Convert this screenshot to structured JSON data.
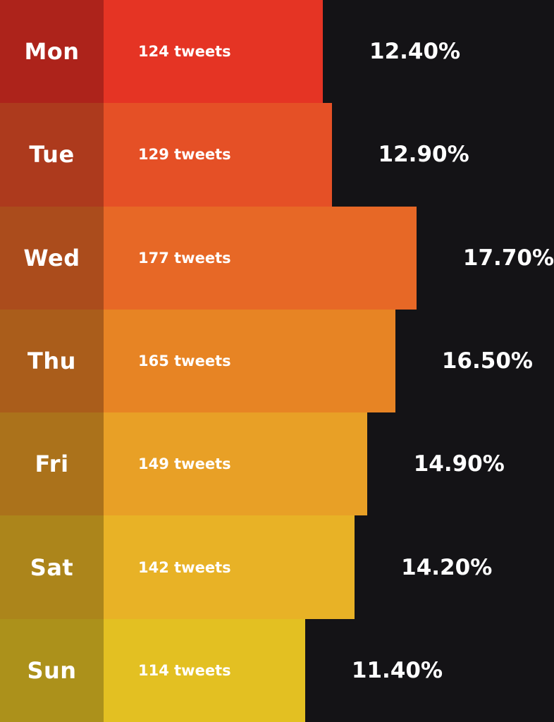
{
  "colors": {
    "background": "#141316"
  },
  "chart_data": {
    "type": "bar",
    "orientation": "horizontal",
    "categories": [
      "Mon",
      "Tue",
      "Wed",
      "Thu",
      "Fri",
      "Sat",
      "Sun"
    ],
    "series": [
      {
        "values": [
          124,
          129,
          177,
          165,
          149,
          142,
          114
        ],
        "unit": "tweets"
      }
    ],
    "value_labels": [
      "124 tweets",
      "129 tweets",
      "177 tweets",
      "165 tweets",
      "149 tweets",
      "142 tweets",
      "114 tweets"
    ],
    "percent_labels": [
      "12.40%",
      "12.90%",
      "17.70%",
      "16.50%",
      "14.90%",
      "14.20%",
      "11.40%"
    ],
    "day_colors": [
      "#ad231b",
      "#ad3a1d",
      "#ab4c1c",
      "#aa5d1b",
      "#ab721b",
      "#ac851b",
      "#ac911b"
    ],
    "bar_colors": [
      "#e53424",
      "#e55026",
      "#e76826",
      "#e78424",
      "#e8a026",
      "#e8b226",
      "#e3c022"
    ],
    "title": "",
    "xlabel": "",
    "ylabel": "",
    "grid": false,
    "legend": "none"
  }
}
